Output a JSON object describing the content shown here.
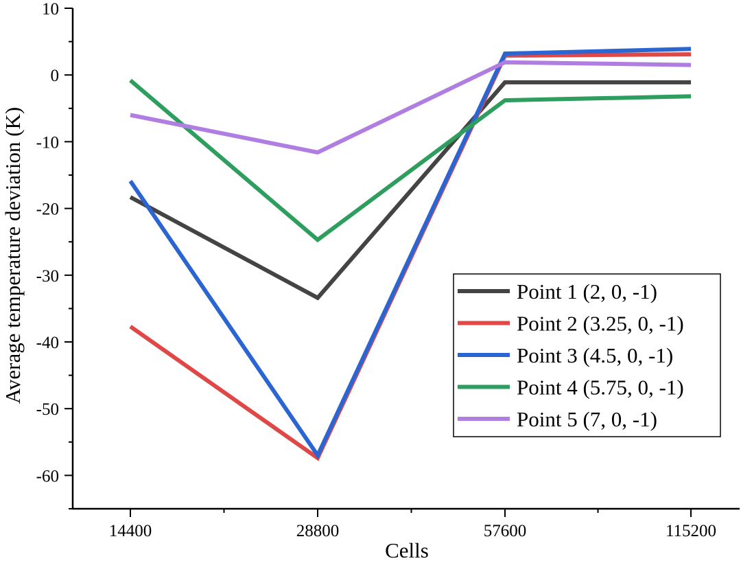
{
  "chart_data": {
    "type": "line",
    "xlabel": "Cells",
    "ylabel": "Average temperature deviation (K)",
    "categories": [
      "14400",
      "28800",
      "57600",
      "115200"
    ],
    "ylim": [
      -65,
      10
    ],
    "y_ticks": [
      10,
      0,
      -10,
      -20,
      -30,
      -40,
      -50,
      -60
    ],
    "y_tick_labels": [
      "10",
      "0",
      "-10",
      "-20",
      "-30",
      "-40",
      "-50",
      "-60"
    ],
    "grid": false,
    "legend_position": "bottom-right",
    "series": [
      {
        "name": "Point 1 (2, 0, -1)",
        "color": "#444444",
        "values": [
          -18.3,
          -33.4,
          -1.1,
          -1.1
        ]
      },
      {
        "name": "Point 2 (3.25, 0, -1)",
        "color": "#e04848",
        "values": [
          -37.7,
          -57.4,
          2.9,
          3.1
        ]
      },
      {
        "name": "Point 3 (4.5, 0, -1)",
        "color": "#2a65d1",
        "values": [
          -15.9,
          -57.0,
          3.2,
          3.9
        ]
      },
      {
        "name": "Point 4 (5.75, 0, -1)",
        "color": "#2e9e5f",
        "values": [
          -0.8,
          -24.7,
          -3.8,
          -3.2
        ]
      },
      {
        "name": "Point 5 (7, 0, -1)",
        "color": "#b07ee0",
        "values": [
          -6.0,
          -11.6,
          1.9,
          1.5
        ]
      }
    ]
  }
}
